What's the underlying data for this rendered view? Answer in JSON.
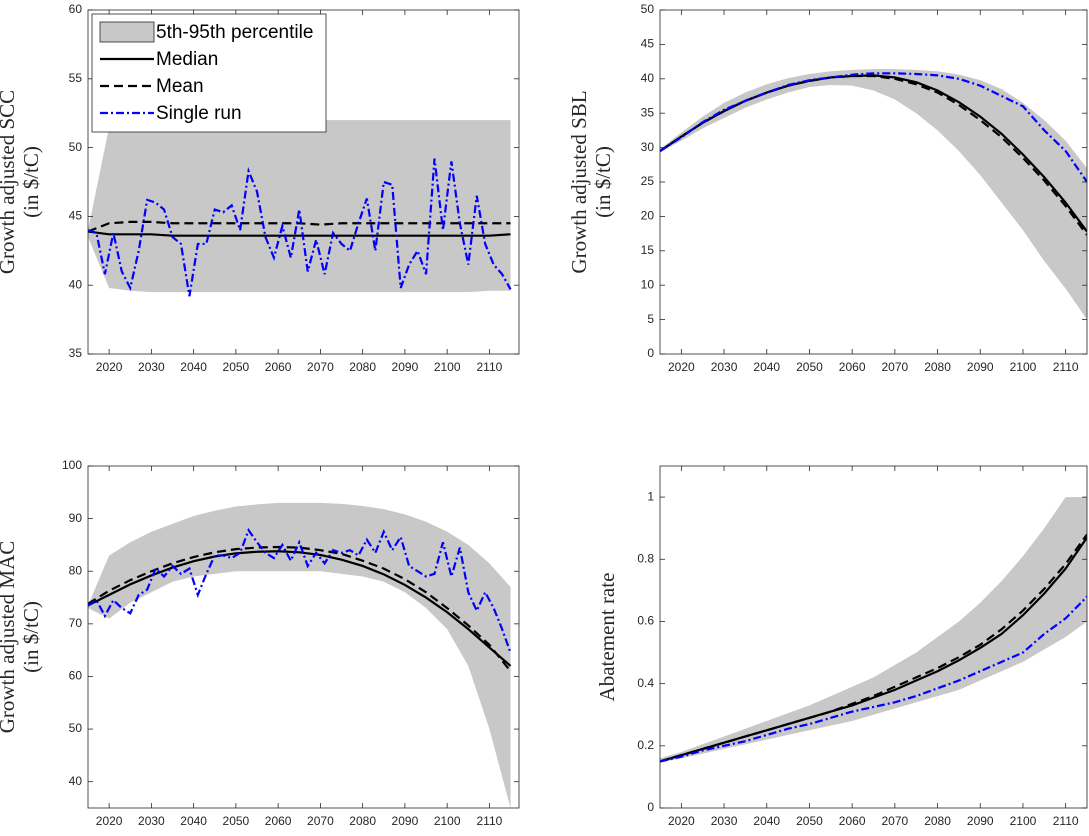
{
  "chart_data": [
    {
      "type": "line",
      "ylabel": [
        "Growth adjusted SCC",
        "(in $/tC)"
      ],
      "legend": "upper left",
      "x": [
        2015,
        2020,
        2025,
        2030,
        2035,
        2040,
        2045,
        2050,
        2055,
        2060,
        2065,
        2070,
        2075,
        2080,
        2085,
        2090,
        2095,
        2100,
        2105,
        2110,
        2115
      ],
      "xlim": [
        2015,
        2117
      ],
      "xticks": [
        2020,
        2030,
        2040,
        2050,
        2060,
        2070,
        2080,
        2090,
        2100,
        2110
      ],
      "ylim": [
        35,
        60
      ],
      "yticks": [
        35,
        40,
        45,
        50,
        55,
        60
      ],
      "band": {
        "name": "5th-95th percentile",
        "color": "#c8c8c8",
        "lower": [
          43.5,
          39.8,
          39.6,
          39.5,
          39.5,
          39.5,
          39.5,
          39.5,
          39.5,
          39.5,
          39.5,
          39.5,
          39.5,
          39.5,
          39.5,
          39.5,
          39.5,
          39.5,
          39.5,
          39.6,
          39.6
        ],
        "upper": [
          44,
          51.5,
          51.8,
          51.9,
          52,
          52,
          52,
          52,
          52,
          52,
          52,
          52,
          52,
          52,
          52,
          52,
          52,
          52,
          52,
          52,
          52
        ]
      },
      "series": [
        {
          "name": "Median",
          "color": "#000000",
          "style": "solid",
          "values": [
            43.9,
            43.7,
            43.7,
            43.7,
            43.6,
            43.6,
            43.6,
            43.6,
            43.6,
            43.6,
            43.6,
            43.6,
            43.6,
            43.6,
            43.6,
            43.6,
            43.6,
            43.6,
            43.6,
            43.6,
            43.7
          ]
        },
        {
          "name": "Mean",
          "color": "#000000",
          "style": "dashed",
          "values": [
            43.9,
            44.5,
            44.6,
            44.6,
            44.5,
            44.5,
            44.5,
            44.5,
            44.5,
            44.5,
            44.5,
            44.4,
            44.5,
            44.5,
            44.5,
            44.5,
            44.5,
            44.5,
            44.5,
            44.5,
            44.5
          ]
        },
        {
          "name": "Single run",
          "color": "#0000ff",
          "style": "dashdot",
          "x": [
            2015,
            2017,
            2019,
            2021,
            2023,
            2025,
            2027,
            2029,
            2031,
            2033,
            2035,
            2037,
            2039,
            2041,
            2043,
            2045,
            2047,
            2049,
            2051,
            2053,
            2055,
            2057,
            2059,
            2061,
            2063,
            2065,
            2067,
            2069,
            2071,
            2073,
            2075,
            2077,
            2079,
            2081,
            2083,
            2085,
            2087,
            2089,
            2091,
            2093,
            2095,
            2097,
            2099,
            2101,
            2103,
            2105,
            2107,
            2109,
            2111,
            2113,
            2115
          ],
          "values": [
            44,
            43.8,
            40.8,
            43.8,
            41,
            39.8,
            42.5,
            46.2,
            46,
            45.5,
            43.5,
            43,
            39.2,
            43,
            43,
            45.5,
            45.3,
            45.8,
            44,
            48.3,
            46.8,
            43.5,
            42,
            44.3,
            42,
            45.5,
            41,
            43.3,
            40.8,
            43.8,
            43,
            42.5,
            44.5,
            46.3,
            42.5,
            47.5,
            47.3,
            39.8,
            41.5,
            42.5,
            40.8,
            49.2,
            44,
            49,
            44.5,
            41.5,
            46.5,
            43,
            41.5,
            40.8,
            39.7
          ]
        }
      ]
    },
    {
      "type": "line",
      "ylabel": [
        "Growth adjusted SBL",
        "(in $/tC)"
      ],
      "x": [
        2015,
        2020,
        2025,
        2030,
        2035,
        2040,
        2045,
        2050,
        2055,
        2060,
        2065,
        2070,
        2075,
        2080,
        2085,
        2090,
        2095,
        2100,
        2105,
        2110,
        2115
      ],
      "xlim": [
        2015,
        2115
      ],
      "xticks": [
        2020,
        2030,
        2040,
        2050,
        2060,
        2070,
        2080,
        2090,
        2100,
        2110
      ],
      "ylim": [
        0,
        50
      ],
      "yticks": [
        0,
        5,
        10,
        15,
        20,
        25,
        30,
        35,
        40,
        45,
        50
      ],
      "band": {
        "color": "#c8c8c8",
        "lower": [
          29.3,
          31,
          32.8,
          34.3,
          35.8,
          37,
          38,
          38.8,
          39.1,
          39,
          38.3,
          37,
          35,
          32.5,
          29.5,
          26,
          22,
          18,
          13.5,
          9.5,
          5
        ],
        "upper": [
          29.8,
          32.2,
          34.5,
          36.5,
          38,
          39.2,
          40.1,
          40.7,
          41.1,
          41.3,
          41.4,
          41.4,
          41.3,
          41.1,
          40.6,
          39.8,
          38.5,
          36.5,
          34,
          31,
          27
        ]
      },
      "series": [
        {
          "color": "#000000",
          "style": "solid",
          "values": [
            29.5,
            31.6,
            33.6,
            35.3,
            36.8,
            38,
            39,
            39.7,
            40.2,
            40.4,
            40.5,
            40.2,
            39.5,
            38.3,
            36.6,
            34.5,
            32,
            29,
            25.7,
            22,
            17.8
          ]
        },
        {
          "color": "#000000",
          "style": "dashed",
          "values": [
            29.5,
            31.6,
            33.6,
            35.3,
            36.8,
            38,
            39,
            39.7,
            40.2,
            40.4,
            40.4,
            40,
            39.2,
            38,
            36.2,
            34,
            31.5,
            28.5,
            25.2,
            21.5,
            17.3
          ]
        },
        {
          "color": "#0000ff",
          "style": "dashdot",
          "values": [
            29.5,
            31.5,
            33.7,
            35.5,
            36.8,
            38,
            39.1,
            39.8,
            40.2,
            40.6,
            40.8,
            40.8,
            40.7,
            40.5,
            40,
            39,
            37.5,
            36,
            32.5,
            29.5,
            25
          ]
        }
      ]
    },
    {
      "type": "line",
      "ylabel": [
        "Growth adjusted MAC",
        "(in $/tC)"
      ],
      "x": [
        2015,
        2020,
        2025,
        2030,
        2035,
        2040,
        2045,
        2050,
        2055,
        2060,
        2065,
        2070,
        2075,
        2080,
        2085,
        2090,
        2095,
        2100,
        2105,
        2110,
        2115
      ],
      "xlim": [
        2015,
        2117
      ],
      "xticks": [
        2020,
        2030,
        2040,
        2050,
        2060,
        2070,
        2080,
        2090,
        2100,
        2110
      ],
      "ylim": [
        35,
        100
      ],
      "yticks": [
        40,
        50,
        60,
        70,
        80,
        90,
        100
      ],
      "band": {
        "color": "#c8c8c8",
        "lower": [
          73,
          71,
          74,
          76,
          78,
          79,
          79.5,
          80,
          80,
          80,
          80,
          80,
          79.5,
          79,
          78,
          76,
          73,
          69,
          62,
          50,
          35
        ],
        "upper": [
          73.5,
          83,
          85.5,
          87.5,
          89,
          90.5,
          91.5,
          92.3,
          92.7,
          93,
          93,
          93,
          92.8,
          92.4,
          91.8,
          90.8,
          89.4,
          87.5,
          85,
          81.5,
          77
        ]
      },
      "series": [
        {
          "color": "#000000",
          "style": "solid",
          "values": [
            73.5,
            75.5,
            77.5,
            79.2,
            80.7,
            81.9,
            82.8,
            83.4,
            83.7,
            83.8,
            83.6,
            83.1,
            82.2,
            81,
            79.4,
            77.4,
            75,
            72.2,
            69,
            65.5,
            62
          ]
        },
        {
          "color": "#000000",
          "style": "dashed",
          "values": [
            73.8,
            76.3,
            78.3,
            80,
            81.5,
            82.7,
            83.6,
            84.2,
            84.5,
            84.6,
            84.5,
            84,
            83.3,
            82,
            80.5,
            78.5,
            76,
            73,
            69.7,
            66,
            61
          ]
        },
        {
          "color": "#0000ff",
          "style": "dashdot",
          "x": [
            2015,
            2017,
            2019,
            2021,
            2023,
            2025,
            2027,
            2029,
            2031,
            2033,
            2035,
            2037,
            2039,
            2041,
            2043,
            2045,
            2047,
            2049,
            2051,
            2053,
            2055,
            2057,
            2059,
            2061,
            2063,
            2065,
            2067,
            2069,
            2071,
            2073,
            2075,
            2077,
            2079,
            2081,
            2083,
            2085,
            2087,
            2089,
            2091,
            2093,
            2095,
            2097,
            2099,
            2101,
            2103,
            2105,
            2107,
            2109,
            2111,
            2113,
            2115
          ],
          "values": [
            73.5,
            74.5,
            71.5,
            74.5,
            73,
            72,
            75.5,
            76.5,
            80.5,
            79,
            81,
            79.5,
            80.5,
            75.5,
            79.5,
            83,
            83,
            82.5,
            83.5,
            87.8,
            85.5,
            83.5,
            82.5,
            85,
            82,
            85.5,
            81,
            83.5,
            81.5,
            84,
            83.5,
            84,
            83,
            86,
            83.5,
            87.5,
            84,
            86.5,
            81,
            80,
            79,
            79.5,
            85.5,
            79,
            84.5,
            76,
            72.5,
            76,
            73,
            69,
            64.5
          ]
        }
      ]
    },
    {
      "type": "line",
      "ylabel": [
        "Abatement rate"
      ],
      "x": [
        2015,
        2020,
        2025,
        2030,
        2035,
        2040,
        2045,
        2050,
        2055,
        2060,
        2065,
        2070,
        2075,
        2080,
        2085,
        2090,
        2095,
        2100,
        2105,
        2110,
        2115
      ],
      "xlim": [
        2015,
        2115
      ],
      "xticks": [
        2020,
        2030,
        2040,
        2050,
        2060,
        2070,
        2080,
        2090,
        2100,
        2110
      ],
      "ylim": [
        0,
        1.1
      ],
      "yticks": [
        0,
        0.2,
        0.4,
        0.6,
        0.8,
        1
      ],
      "band": {
        "color": "#c8c8c8",
        "lower": [
          0.145,
          0.16,
          0.175,
          0.19,
          0.205,
          0.22,
          0.235,
          0.25,
          0.265,
          0.28,
          0.3,
          0.32,
          0.34,
          0.36,
          0.38,
          0.41,
          0.44,
          0.47,
          0.51,
          0.55,
          0.6
        ],
        "upper": [
          0.16,
          0.18,
          0.205,
          0.23,
          0.255,
          0.28,
          0.305,
          0.33,
          0.36,
          0.39,
          0.42,
          0.46,
          0.5,
          0.55,
          0.6,
          0.66,
          0.73,
          0.81,
          0.9,
          1,
          1
        ]
      },
      "series": [
        {
          "color": "#000000",
          "style": "solid",
          "values": [
            0.15,
            0.17,
            0.19,
            0.21,
            0.23,
            0.25,
            0.27,
            0.29,
            0.31,
            0.33,
            0.355,
            0.38,
            0.41,
            0.44,
            0.475,
            0.515,
            0.56,
            0.62,
            0.69,
            0.77,
            0.87
          ]
        },
        {
          "color": "#000000",
          "style": "dashed",
          "values": [
            0.15,
            0.17,
            0.19,
            0.21,
            0.23,
            0.25,
            0.27,
            0.29,
            0.31,
            0.335,
            0.36,
            0.39,
            0.42,
            0.45,
            0.485,
            0.525,
            0.575,
            0.635,
            0.705,
            0.785,
            0.88
          ]
        },
        {
          "color": "#0000ff",
          "style": "dashdot",
          "values": [
            0.15,
            0.165,
            0.185,
            0.2,
            0.215,
            0.235,
            0.255,
            0.27,
            0.29,
            0.31,
            0.325,
            0.34,
            0.36,
            0.385,
            0.41,
            0.44,
            0.47,
            0.5,
            0.56,
            0.61,
            0.68
          ]
        }
      ]
    }
  ]
}
